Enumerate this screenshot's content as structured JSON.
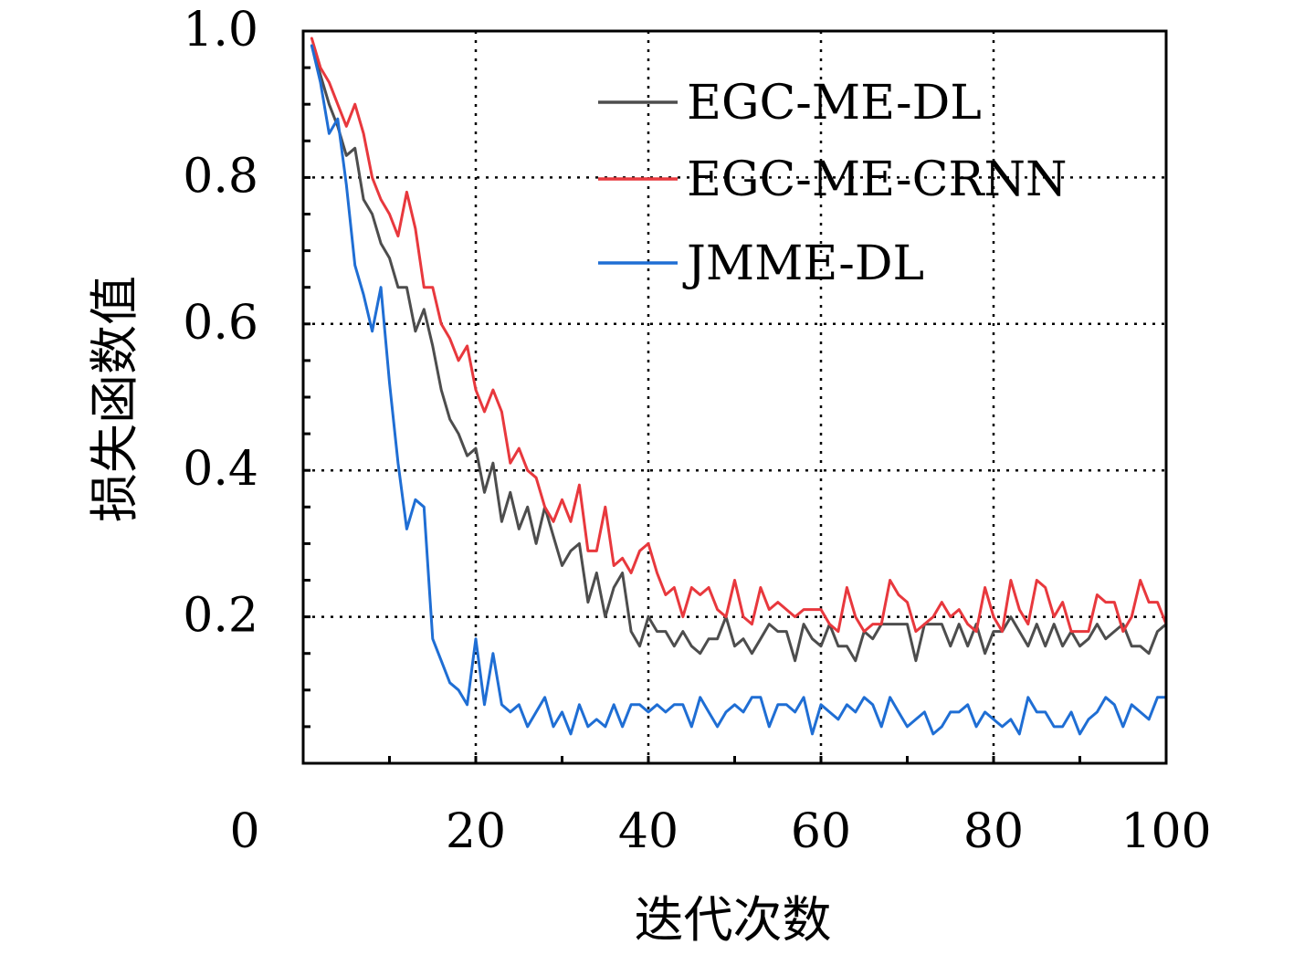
{
  "chart_data": {
    "type": "line",
    "xlabel": "迭代次数",
    "ylabel": "损失函数值",
    "xlim": [
      0,
      100
    ],
    "ylim": [
      0,
      1.0
    ],
    "xticks": [
      0,
      20,
      40,
      60,
      80,
      100
    ],
    "yticks": [
      0.2,
      0.4,
      0.6,
      0.8,
      1.0
    ],
    "xtick_labels": [
      "0",
      "20",
      "40",
      "60",
      "80",
      "100"
    ],
    "ytick_labels": [
      "0.2",
      "0.4",
      "0.6",
      "0.8",
      "1.0"
    ],
    "grid": true,
    "legend_position": "top-right",
    "x": [
      1,
      2,
      3,
      4,
      5,
      6,
      7,
      8,
      9,
      10,
      11,
      12,
      13,
      14,
      15,
      16,
      17,
      18,
      19,
      20,
      21,
      22,
      23,
      24,
      25,
      26,
      27,
      28,
      29,
      30,
      31,
      32,
      33,
      34,
      35,
      36,
      37,
      38,
      39,
      40,
      41,
      42,
      43,
      44,
      45,
      46,
      47,
      48,
      49,
      50,
      51,
      52,
      53,
      54,
      55,
      56,
      57,
      58,
      59,
      60,
      61,
      62,
      63,
      64,
      65,
      66,
      67,
      68,
      69,
      70,
      71,
      72,
      73,
      74,
      75,
      76,
      77,
      78,
      79,
      80,
      81,
      82,
      83,
      84,
      85,
      86,
      87,
      88,
      89,
      90,
      91,
      92,
      93,
      94,
      95,
      96,
      97,
      98,
      99,
      100
    ],
    "series": [
      {
        "name": "EGC-ME-DL",
        "color": "#4d4d4d",
        "values": [
          0.98,
          0.94,
          0.9,
          0.87,
          0.83,
          0.84,
          0.77,
          0.75,
          0.71,
          0.69,
          0.65,
          0.65,
          0.59,
          0.62,
          0.57,
          0.51,
          0.47,
          0.45,
          0.42,
          0.43,
          0.37,
          0.41,
          0.33,
          0.37,
          0.32,
          0.35,
          0.3,
          0.35,
          0.31,
          0.27,
          0.29,
          0.3,
          0.22,
          0.26,
          0.2,
          0.24,
          0.26,
          0.18,
          0.16,
          0.2,
          0.18,
          0.18,
          0.16,
          0.18,
          0.16,
          0.15,
          0.17,
          0.17,
          0.2,
          0.16,
          0.17,
          0.15,
          0.17,
          0.19,
          0.18,
          0.18,
          0.14,
          0.19,
          0.17,
          0.16,
          0.19,
          0.16,
          0.16,
          0.14,
          0.18,
          0.17,
          0.19,
          0.19,
          0.19,
          0.19,
          0.14,
          0.19,
          0.19,
          0.19,
          0.16,
          0.19,
          0.16,
          0.19,
          0.15,
          0.18,
          0.18,
          0.2,
          0.18,
          0.16,
          0.19,
          0.16,
          0.19,
          0.16,
          0.18,
          0.16,
          0.17,
          0.19,
          0.17,
          0.18,
          0.19,
          0.16,
          0.16,
          0.15,
          0.18,
          0.19
        ]
      },
      {
        "name": "EGC-ME-CRNN",
        "color": "#e8383d",
        "values": [
          0.99,
          0.95,
          0.93,
          0.9,
          0.87,
          0.9,
          0.86,
          0.8,
          0.77,
          0.75,
          0.72,
          0.78,
          0.73,
          0.65,
          0.65,
          0.6,
          0.58,
          0.55,
          0.57,
          0.51,
          0.48,
          0.51,
          0.48,
          0.41,
          0.43,
          0.4,
          0.39,
          0.35,
          0.33,
          0.36,
          0.33,
          0.38,
          0.29,
          0.29,
          0.35,
          0.27,
          0.28,
          0.26,
          0.29,
          0.3,
          0.26,
          0.23,
          0.24,
          0.2,
          0.24,
          0.23,
          0.24,
          0.21,
          0.2,
          0.25,
          0.2,
          0.19,
          0.24,
          0.21,
          0.22,
          0.21,
          0.2,
          0.21,
          0.21,
          0.21,
          0.19,
          0.18,
          0.24,
          0.2,
          0.18,
          0.19,
          0.19,
          0.25,
          0.23,
          0.22,
          0.18,
          0.19,
          0.2,
          0.22,
          0.2,
          0.21,
          0.19,
          0.18,
          0.24,
          0.2,
          0.18,
          0.25,
          0.21,
          0.19,
          0.25,
          0.24,
          0.2,
          0.22,
          0.18,
          0.18,
          0.18,
          0.23,
          0.22,
          0.22,
          0.18,
          0.2,
          0.25,
          0.22,
          0.22,
          0.19
        ]
      },
      {
        "name": "JMME-DL",
        "color": "#1f6ed4",
        "values": [
          0.98,
          0.93,
          0.86,
          0.88,
          0.79,
          0.68,
          0.64,
          0.59,
          0.65,
          0.52,
          0.41,
          0.32,
          0.36,
          0.35,
          0.17,
          0.14,
          0.11,
          0.1,
          0.08,
          0.17,
          0.08,
          0.15,
          0.08,
          0.07,
          0.08,
          0.05,
          0.07,
          0.09,
          0.05,
          0.07,
          0.04,
          0.08,
          0.05,
          0.06,
          0.05,
          0.08,
          0.05,
          0.08,
          0.08,
          0.07,
          0.08,
          0.07,
          0.08,
          0.08,
          0.05,
          0.09,
          0.07,
          0.05,
          0.07,
          0.08,
          0.07,
          0.09,
          0.09,
          0.05,
          0.08,
          0.08,
          0.07,
          0.09,
          0.04,
          0.08,
          0.07,
          0.06,
          0.08,
          0.07,
          0.09,
          0.08,
          0.05,
          0.09,
          0.07,
          0.05,
          0.06,
          0.07,
          0.04,
          0.05,
          0.07,
          0.07,
          0.08,
          0.05,
          0.07,
          0.06,
          0.05,
          0.06,
          0.04,
          0.09,
          0.07,
          0.07,
          0.05,
          0.05,
          0.07,
          0.04,
          0.06,
          0.07,
          0.09,
          0.08,
          0.05,
          0.08,
          0.07,
          0.06,
          0.09,
          0.09
        ]
      }
    ]
  }
}
